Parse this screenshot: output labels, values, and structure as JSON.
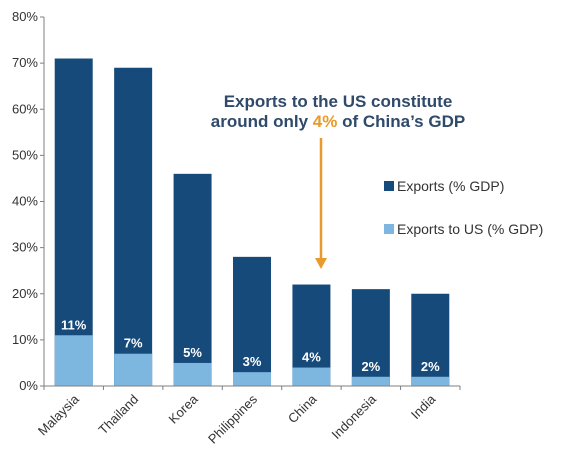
{
  "chart_data": {
    "type": "bar",
    "stacked": "overlay",
    "categories": [
      "Malaysia",
      "Thailand",
      "Korea",
      "Philippines",
      "China",
      "Indonesia",
      "India"
    ],
    "series": [
      {
        "name": "Exports (% GDP)",
        "values": [
          71,
          69,
          46,
          28,
          22,
          21,
          20
        ],
        "color": "#164a7a"
      },
      {
        "name": "Exports to US (% GDP)",
        "values": [
          11,
          7,
          5,
          3,
          4,
          2,
          2
        ],
        "color": "#7db7e0"
      }
    ],
    "data_labels": [
      "11%",
      "7%",
      "5%",
      "3%",
      "4%",
      "2%",
      "2%"
    ],
    "ylim": [
      0,
      80
    ],
    "yticks": [
      0,
      10,
      20,
      30,
      40,
      50,
      60,
      70,
      80
    ],
    "ytick_labels": [
      "0%",
      "10%",
      "20%",
      "30%",
      "40%",
      "50%",
      "60%",
      "70%",
      "80%"
    ],
    "grid": false,
    "legend": "right",
    "annotation": {
      "line1": "Exports to the US constitute",
      "line2_prefix": "around only ",
      "line2_highlight": "4%",
      "line2_suffix": " of China’s GDP",
      "highlight_color": "#e89b2c",
      "arrow_target": "China"
    }
  }
}
